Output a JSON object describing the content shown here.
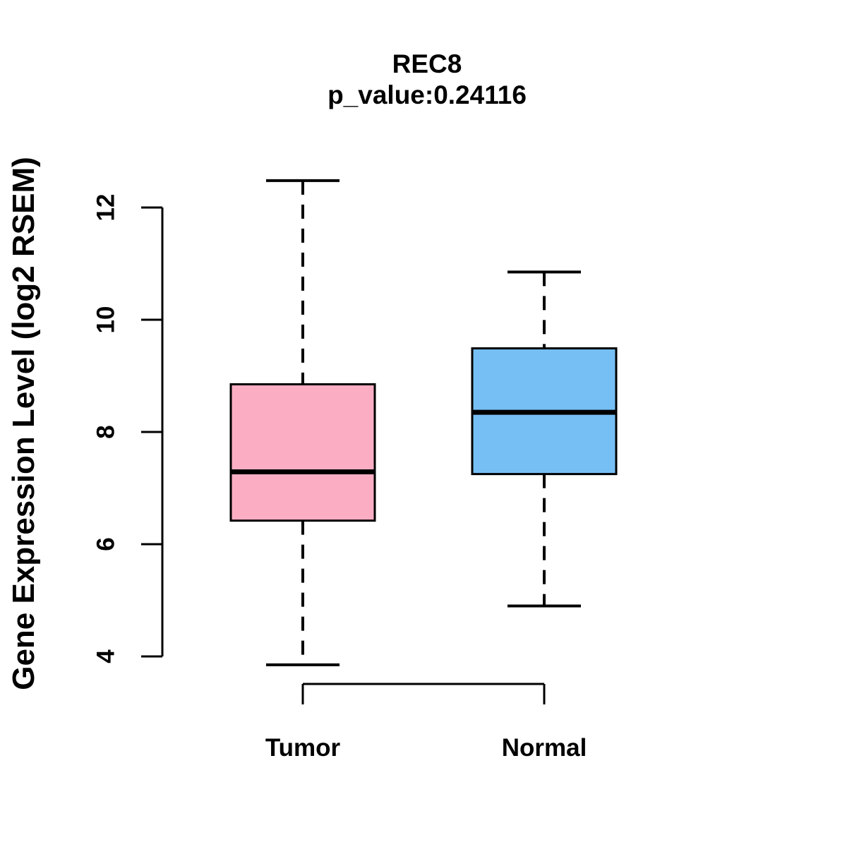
{
  "chart_data": {
    "type": "boxplot",
    "title": "REC8",
    "subtitle": "p_value:0.24116",
    "ylabel": "Gene Expression Level (log2 RSEM)",
    "xlabel": "",
    "categories": [
      "Tumor",
      "Normal"
    ],
    "y_ticks": [
      4,
      6,
      8,
      10,
      12
    ],
    "ylim": [
      3.3,
      12.7
    ],
    "grid": false,
    "legend": "none",
    "series": [
      {
        "name": "Tumor",
        "color": "#FBAEC3",
        "whisker_low": 3.85,
        "q1": 6.42,
        "median": 7.29,
        "q3": 8.85,
        "whisker_high": 12.48
      },
      {
        "name": "Normal",
        "color": "#76BFF5",
        "whisker_low": 4.9,
        "q1": 7.25,
        "median": 8.35,
        "q3": 9.49,
        "whisker_high": 10.85
      }
    ],
    "colors": {
      "tumor_fill": "#FBAEC3",
      "normal_fill": "#76BFF5",
      "line": "#000000",
      "background": "#FFFFFF"
    }
  }
}
